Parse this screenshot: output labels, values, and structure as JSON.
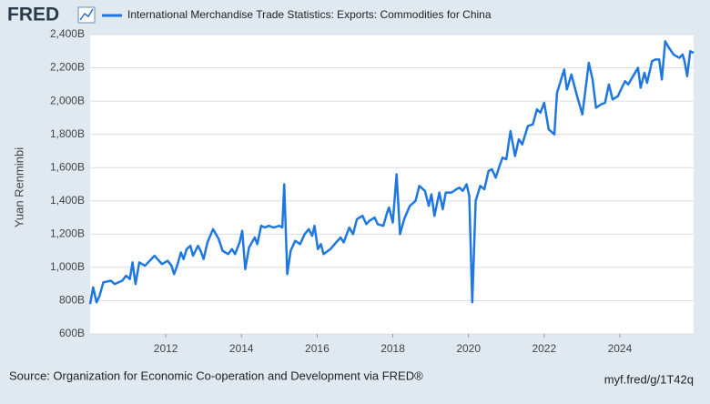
{
  "logo": "FRED",
  "source": "Source: Organization for Economic Co-operation and Development via FRED®",
  "short_url": "myf.fred/g/1T42q",
  "chart_data": {
    "type": "line",
    "ylabel": "Yuan Renminbi",
    "x": [
      2010.0,
      2010.08,
      2010.17,
      2010.25,
      2010.35,
      2010.55,
      2010.65,
      2010.85,
      2010.95,
      2011.05,
      2011.12,
      2011.2,
      2011.3,
      2011.45,
      2011.7,
      2011.9,
      2012.05,
      2012.15,
      2012.22,
      2012.3,
      2012.4,
      2012.47,
      2012.55,
      2012.65,
      2012.72,
      2012.85,
      2012.92,
      2013.0,
      2013.1,
      2013.25,
      2013.4,
      2013.5,
      2013.65,
      2013.75,
      2013.83,
      2013.95,
      2014.02,
      2014.1,
      2014.2,
      2014.35,
      2014.42,
      2014.52,
      2014.62,
      2014.72,
      2014.85,
      2015.0,
      2015.08,
      2015.13,
      2015.21,
      2015.3,
      2015.42,
      2015.55,
      2015.67,
      2015.78,
      2015.87,
      2015.93,
      2016.02,
      2016.1,
      2016.17,
      2016.35,
      2016.5,
      2016.62,
      2016.7,
      2016.85,
      2016.95,
      2017.05,
      2017.2,
      2017.3,
      2017.38,
      2017.52,
      2017.6,
      2017.75,
      2017.85,
      2017.9,
      2018.0,
      2018.1,
      2018.19,
      2018.3,
      2018.45,
      2018.6,
      2018.7,
      2018.85,
      2018.95,
      2019.02,
      2019.1,
      2019.23,
      2019.32,
      2019.4,
      2019.55,
      2019.68,
      2019.76,
      2019.85,
      2019.95,
      2020.02,
      2020.1,
      2020.19,
      2020.31,
      2020.42,
      2020.53,
      2020.62,
      2020.72,
      2020.82,
      2020.9,
      2021.0,
      2021.11,
      2021.23,
      2021.33,
      2021.42,
      2021.57,
      2021.7,
      2021.81,
      2021.9,
      2022.0,
      2022.12,
      2022.27,
      2022.34,
      2022.53,
      2022.6,
      2022.72,
      2022.87,
      2023.01,
      2023.18,
      2023.28,
      2023.37,
      2023.5,
      2023.61,
      2023.71,
      2023.81,
      2023.95,
      2024.05,
      2024.14,
      2024.22,
      2024.35,
      2024.48,
      2024.55,
      2024.65,
      2024.72,
      2024.85,
      2024.94,
      2025.04,
      2025.11,
      2025.2,
      2025.3,
      2025.42,
      2025.57,
      2025.66,
      2025.71,
      2025.78,
      2025.86,
      2025.95
    ],
    "series": [
      {
        "name": "International Merchandise Trade Statistics: Exports: Commodities for China",
        "color": "#1f77e0",
        "values": [
          780,
          880,
          790,
          830,
          910,
          920,
          900,
          920,
          950,
          930,
          1030,
          900,
          1030,
          1010,
          1070,
          1020,
          1040,
          1010,
          960,
          1010,
          1090,
          1050,
          1110,
          1130,
          1070,
          1130,
          1100,
          1050,
          1150,
          1230,
          1170,
          1100,
          1080,
          1110,
          1080,
          1150,
          1220,
          990,
          1120,
          1180,
          1140,
          1250,
          1240,
          1250,
          1240,
          1250,
          1240,
          1500,
          960,
          1100,
          1160,
          1140,
          1200,
          1230,
          1190,
          1250,
          1110,
          1140,
          1080,
          1110,
          1150,
          1180,
          1150,
          1240,
          1200,
          1290,
          1310,
          1260,
          1280,
          1300,
          1260,
          1250,
          1330,
          1360,
          1270,
          1560,
          1200,
          1290,
          1370,
          1400,
          1490,
          1460,
          1370,
          1440,
          1310,
          1450,
          1350,
          1450,
          1450,
          1470,
          1480,
          1460,
          1500,
          1430,
          790,
          1400,
          1490,
          1470,
          1580,
          1590,
          1540,
          1610,
          1660,
          1650,
          1820,
          1670,
          1770,
          1740,
          1850,
          1860,
          1950,
          1930,
          1990,
          1830,
          1800,
          2050,
          2190,
          2070,
          2160,
          2030,
          1920,
          2230,
          2130,
          1960,
          1980,
          1990,
          2100,
          2010,
          2030,
          2080,
          2120,
          2100,
          2150,
          2200,
          2080,
          2170,
          2110,
          2240,
          2250,
          2250,
          2130,
          2360,
          2320,
          2280,
          2260,
          2280,
          2240,
          2150,
          2300,
          2290
        ]
      }
    ],
    "xlim": [
      2010.0,
      2025.95
    ],
    "xticks": [
      2012,
      2014,
      2016,
      2018,
      2020,
      2022,
      2024
    ],
    "ylim": [
      600,
      2400
    ],
    "yticks": [
      {
        "value": 600,
        "label": "600B"
      },
      {
        "value": 800,
        "label": "800B"
      },
      {
        "value": 1000,
        "label": "1,000B"
      },
      {
        "value": 1200,
        "label": "1,200B"
      },
      {
        "value": 1400,
        "label": "1,400B"
      },
      {
        "value": 1600,
        "label": "1,600B"
      },
      {
        "value": 1800,
        "label": "1,800B"
      },
      {
        "value": 2000,
        "label": "2,000B"
      },
      {
        "value": 2200,
        "label": "2,200B"
      },
      {
        "value": 2400,
        "label": "2,400B"
      }
    ],
    "grid": true
  }
}
